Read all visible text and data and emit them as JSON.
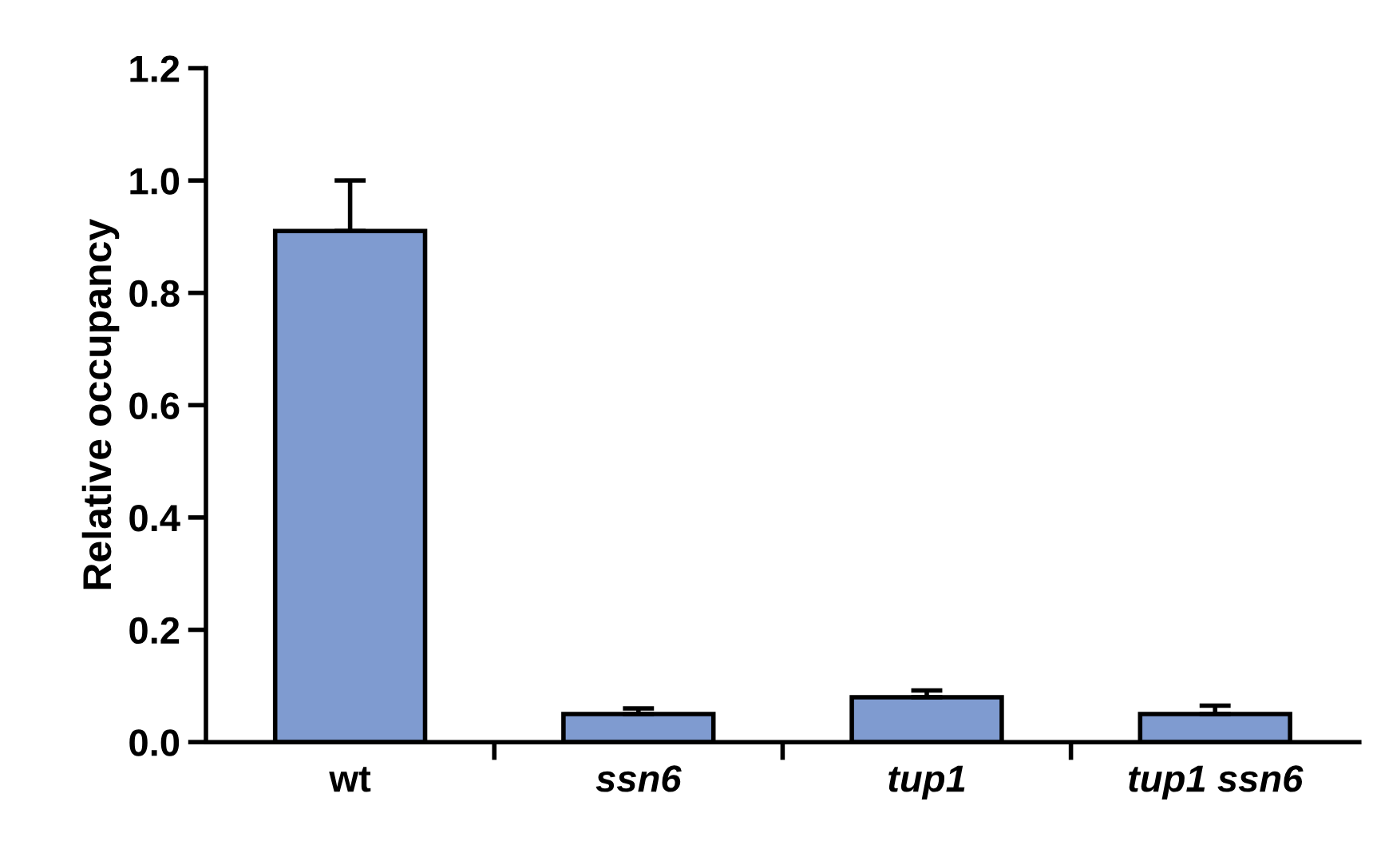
{
  "chart_data": {
    "type": "bar",
    "ylabel": "Relative occupancy",
    "categories": [
      "wt",
      "ssn6",
      "tup1",
      "tup1 ssn6"
    ],
    "values": [
      0.91,
      0.05,
      0.08,
      0.05
    ],
    "errors": [
      0.09,
      0.01,
      0.012,
      0.015
    ],
    "color": "#7f9bd0",
    "ylim": [
      0,
      1.2
    ],
    "yticks": [
      {
        "value": 0,
        "label": "0.0"
      },
      {
        "value": 0.2,
        "label": "0.2"
      },
      {
        "value": 0.4,
        "label": "0.4"
      },
      {
        "value": 0.6,
        "label": "0.6"
      },
      {
        "value": 0.8,
        "label": "0.8"
      },
      {
        "value": 1.0,
        "label": "1.0"
      },
      {
        "value": 1.2,
        "label": "1.2"
      }
    ],
    "grid": false
  }
}
